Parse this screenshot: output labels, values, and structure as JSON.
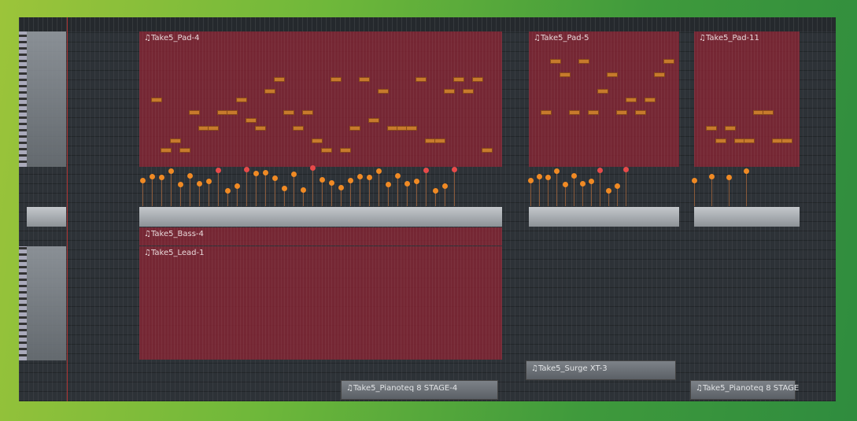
{
  "playlist": {
    "pattern_clips": [
      {
        "name": "♫Take5_Pad-4"
      },
      {
        "name": "♫Take5_Pad-5"
      },
      {
        "name": "♫Take5_Pad-11"
      },
      {
        "name": "♫Take5_Bass-4"
      },
      {
        "name": "♫Take5_Lead-1"
      }
    ],
    "muted_clips": [
      {
        "name": "♫Take5_Surge XT-3"
      },
      {
        "name": "♫Take5_Pianoteq 8 STAGE-4"
      },
      {
        "name": "♫Take5_Pianoteq 8 STAGE"
      }
    ]
  },
  "colors": {
    "clip": "#822634",
    "note": "#c77a2c",
    "velocity": "#f08a24",
    "velocity_high": "#e84a4a",
    "background": "#2d3237"
  }
}
